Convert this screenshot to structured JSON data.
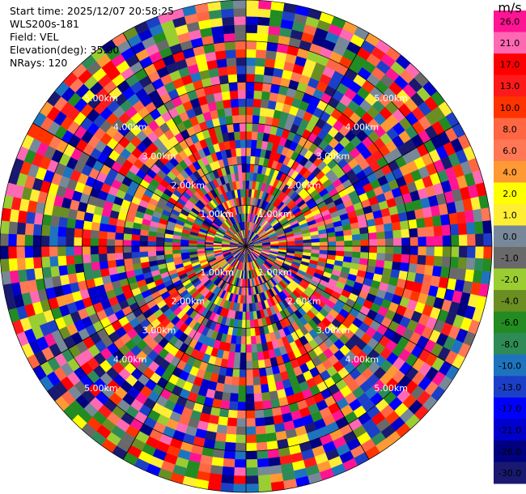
{
  "chart_data": {
    "type": "heatmap",
    "subtype": "radar-ppi",
    "info": {
      "start_time": "Start time: 2025/12/07 20:58:25",
      "instrument": "WLS200s-181",
      "field": "Field: VEL",
      "elevation": "Elevation(deg): 35.00",
      "nrays": "NRays: 120"
    },
    "n_rays": 120,
    "n_range_gates": 30,
    "max_range_km": 6.0,
    "range_ring_labels": [
      "1.00km",
      "2.00km",
      "3.00km",
      "4.00km",
      "5.00km"
    ],
    "colorbar": {
      "unit": "m/s",
      "tick_labels": [
        "26.0",
        "21.0",
        "17.0",
        "13.0",
        "10.0",
        "8.0",
        "6.0",
        "4.0",
        "2.0",
        "1.0",
        "0.0",
        "-1.0",
        "-2.0",
        "-4.0",
        "-6.0",
        "-8.0",
        "-10.0",
        "-13.0",
        "-17.0",
        "-21.0",
        "-26.0",
        "-30.0"
      ],
      "colors": [
        "#ff1493",
        "#ff69b4",
        "#ff0000",
        "#ff1a1a",
        "#ff3300",
        "#ff6644",
        "#ff7755",
        "#ff9933",
        "#ffff00",
        "#ffee33",
        "#778899",
        "#696969",
        "#9acd32",
        "#6b8e23",
        "#228b22",
        "#2e8b57",
        "#1e73be",
        "#1c3fc8",
        "#0000ff",
        "#0000cd",
        "#000080",
        "#191970"
      ]
    }
  }
}
